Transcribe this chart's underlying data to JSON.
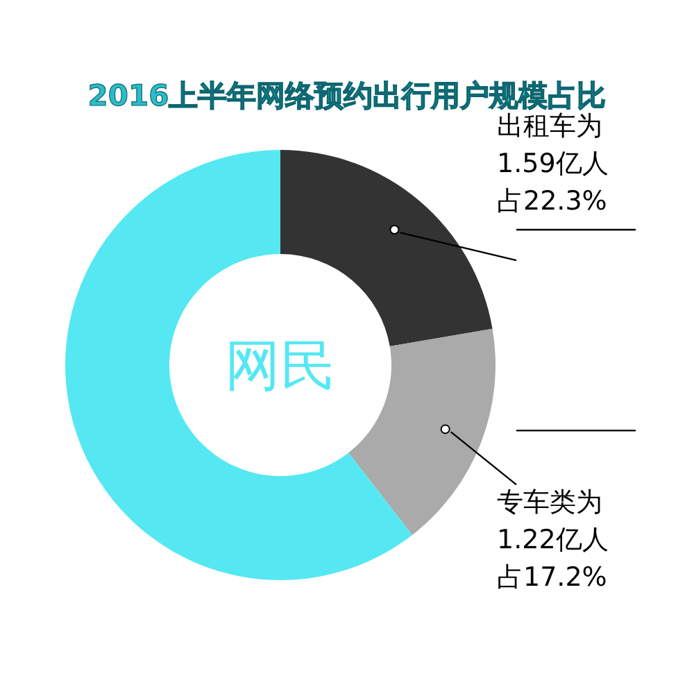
{
  "chart_data": {
    "type": "donut",
    "title": "2016上半年网络预约出行用户规模占比",
    "categories": [
      "出租车为1.59亿人占22.3%",
      "专车类为1.22亿人占17.2%",
      null
    ],
    "values": [
      22.3,
      17.2,
      60.5
    ],
    "colors": [
      "#333333",
      "#aaaaaa",
      "#55e8f2"
    ],
    "annotations": [
      "网民"
    ]
  }
}
